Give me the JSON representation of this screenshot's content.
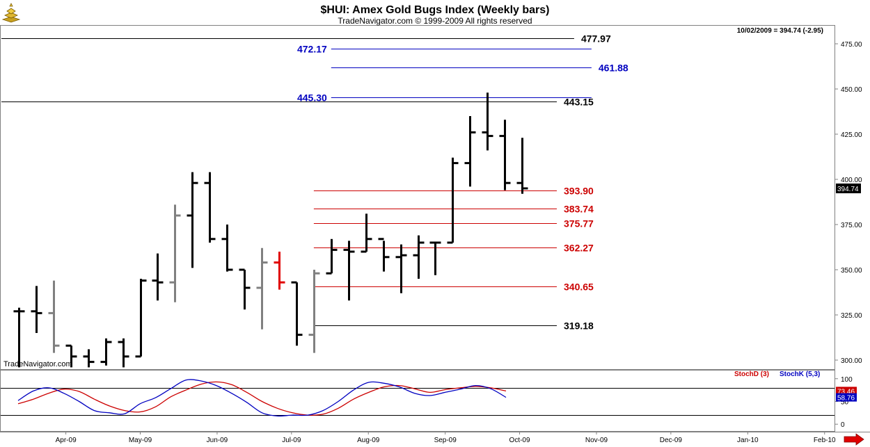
{
  "header": {
    "title": "$HUI:  Amex Gold Bugs Index  (Weekly bars)",
    "subtitle": "TradeNavigator.com © 1999-2009 All rights reserved",
    "last_info": "10/02/2009 = 394.74 (-2.95)",
    "watermark": "TradeNavigator.com"
  },
  "chart_data": [
    {
      "type": "ohlc",
      "ylim": [
        295,
        485
      ],
      "yticks": [
        300,
        325,
        350,
        375,
        400,
        425,
        450,
        475
      ],
      "ytick_labels": [
        "300.00",
        "325.00",
        "350.00",
        "375.00",
        "400.00",
        "425.00",
        "450.00",
        "475.00"
      ],
      "last_price_label": "394.74",
      "colors": {
        "up": "#000000",
        "down": "#808080",
        "highlight": "#e00000"
      },
      "bars": [
        {
          "date": "2009-03-13",
          "open": 327,
          "high": 329,
          "low": 296,
          "close": 327,
          "color": "black"
        },
        {
          "date": "2009-03-20",
          "open": 327,
          "high": 341,
          "low": 315,
          "close": 326,
          "color": "black"
        },
        {
          "date": "2009-03-27",
          "open": 326,
          "high": 344,
          "low": 304,
          "close": 308,
          "color": "gray"
        },
        {
          "date": "2009-04-03",
          "open": 308,
          "high": 308,
          "low": 296,
          "close": 302,
          "color": "black"
        },
        {
          "date": "2009-04-10",
          "open": 302,
          "high": 306,
          "low": 296,
          "close": 299,
          "color": "black"
        },
        {
          "date": "2009-04-17",
          "open": 299,
          "high": 312,
          "low": 297,
          "close": 310,
          "color": "black"
        },
        {
          "date": "2009-04-24",
          "open": 310,
          "high": 312,
          "low": 296,
          "close": 302,
          "color": "black"
        },
        {
          "date": "2009-05-01",
          "open": 302,
          "high": 345,
          "low": 302,
          "close": 344,
          "color": "black"
        },
        {
          "date": "2009-05-08",
          "open": 344,
          "high": 359,
          "low": 333,
          "close": 343,
          "color": "black"
        },
        {
          "date": "2009-05-15",
          "open": 343,
          "high": 386,
          "low": 332,
          "close": 380,
          "color": "gray"
        },
        {
          "date": "2009-05-22",
          "open": 380,
          "high": 404,
          "low": 351,
          "close": 398,
          "color": "black"
        },
        {
          "date": "2009-05-29",
          "open": 398,
          "high": 404,
          "low": 365,
          "close": 367,
          "color": "black"
        },
        {
          "date": "2009-06-05",
          "open": 367,
          "high": 375,
          "low": 349,
          "close": 350,
          "color": "black"
        },
        {
          "date": "2009-06-12",
          "open": 350,
          "high": 350,
          "low": 328,
          "close": 340,
          "color": "black"
        },
        {
          "date": "2009-06-19",
          "open": 340,
          "high": 362,
          "low": 317,
          "close": 354,
          "color": "gray"
        },
        {
          "date": "2009-06-26",
          "open": 354,
          "high": 360,
          "low": 339,
          "close": 343,
          "color": "red"
        },
        {
          "date": "2009-07-03",
          "open": 343,
          "high": 343,
          "low": 308,
          "close": 314,
          "color": "black"
        },
        {
          "date": "2009-07-10",
          "open": 314,
          "high": 350,
          "low": 304,
          "close": 348,
          "color": "gray"
        },
        {
          "date": "2009-07-17",
          "open": 348,
          "high": 367,
          "low": 348,
          "close": 361,
          "color": "black"
        },
        {
          "date": "2009-07-24",
          "open": 361,
          "high": 366,
          "low": 333,
          "close": 360,
          "color": "black"
        },
        {
          "date": "2009-07-31",
          "open": 360,
          "high": 381,
          "low": 360,
          "close": 367,
          "color": "black"
        },
        {
          "date": "2009-08-07",
          "open": 367,
          "high": 366,
          "low": 349,
          "close": 357,
          "color": "black"
        },
        {
          "date": "2009-08-14",
          "open": 357,
          "high": 364,
          "low": 337,
          "close": 358,
          "color": "black"
        },
        {
          "date": "2009-08-21",
          "open": 358,
          "high": 369,
          "low": 345,
          "close": 365,
          "color": "black"
        },
        {
          "date": "2009-08-28",
          "open": 365,
          "high": 365,
          "low": 347,
          "close": 365,
          "color": "black"
        },
        {
          "date": "2009-09-04",
          "open": 365,
          "high": 412,
          "low": 365,
          "close": 409,
          "color": "black"
        },
        {
          "date": "2009-09-11",
          "open": 409,
          "high": 435,
          "low": 396,
          "close": 426,
          "color": "black"
        },
        {
          "date": "2009-09-18",
          "open": 426,
          "high": 448,
          "low": 416,
          "close": 424,
          "color": "black"
        },
        {
          "date": "2009-09-25",
          "open": 424,
          "high": 433,
          "low": 394,
          "close": 398,
          "color": "black"
        },
        {
          "date": "2009-10-02",
          "open": 398,
          "high": 423,
          "low": 392,
          "close": 395,
          "color": "black"
        }
      ],
      "levels": [
        {
          "value": 477.97,
          "label": "477.97",
          "color": "#000000",
          "x_start": "2009-03-06",
          "x_end": "2009-10-23",
          "label_pos": "right-of-end"
        },
        {
          "value": 472.17,
          "label": "472.17",
          "color": "#0000c0",
          "x_start": "2009-07-17",
          "x_end": "2009-10-30",
          "label_pos": "left-of-start"
        },
        {
          "value": 461.88,
          "label": "461.88",
          "color": "#0000c0",
          "x_start": "2009-07-17",
          "x_end": "2009-10-30",
          "label_pos": "right-of-end"
        },
        {
          "value": 445.3,
          "label": "445.30",
          "color": "#0000c0",
          "x_start": "2009-07-17",
          "x_end": "2009-10-30",
          "label_pos": "left-of-start"
        },
        {
          "value": 443.15,
          "label": "443.15",
          "color": "#000000",
          "x_start": "2009-03-06",
          "x_end": "2009-10-16",
          "label_pos": "right-of-end"
        },
        {
          "value": 393.9,
          "label": "393.90",
          "color": "#cc0000",
          "x_start": "2009-07-10",
          "x_end": "2009-10-16",
          "label_pos": "right-of-end"
        },
        {
          "value": 383.74,
          "label": "383.74",
          "color": "#cc0000",
          "x_start": "2009-07-10",
          "x_end": "2009-10-16",
          "label_pos": "right-of-end"
        },
        {
          "value": 375.77,
          "label": "375.77",
          "color": "#cc0000",
          "x_start": "2009-07-10",
          "x_end": "2009-10-16",
          "label_pos": "right-of-end"
        },
        {
          "value": 362.27,
          "label": "362.27",
          "color": "#cc0000",
          "x_start": "2009-07-10",
          "x_end": "2009-10-16",
          "label_pos": "right-of-end"
        },
        {
          "value": 340.65,
          "label": "340.65",
          "color": "#cc0000",
          "x_start": "2009-07-10",
          "x_end": "2009-10-16",
          "label_pos": "right-of-end"
        },
        {
          "value": 319.18,
          "label": "319.18",
          "color": "#000000",
          "x_start": "2009-07-10",
          "x_end": "2009-10-16",
          "label_pos": "right-of-end"
        }
      ]
    },
    {
      "type": "line",
      "ylim": [
        -15,
        118
      ],
      "yticks": [
        0,
        50,
        100
      ],
      "ytick_labels": [
        "0",
        "50",
        "100"
      ],
      "reference_lines": [
        80,
        20
      ],
      "legend": [
        {
          "name": "StochD (3)",
          "color": "#cc0000"
        },
        {
          "name": "StochK (5,3)",
          "color": "#0000c0"
        }
      ],
      "series": [
        {
          "name": "StochD (3)",
          "color": "#cc0000",
          "last_label": "73.46",
          "values": [
            45,
            55,
            68,
            77,
            72,
            55,
            40,
            30,
            27,
            38,
            60,
            75,
            88,
            93,
            87,
            70,
            50,
            35,
            25,
            20,
            22,
            35,
            55,
            70,
            82,
            85,
            78,
            70,
            76,
            80,
            83,
            80,
            73
          ]
        },
        {
          "name": "StochK (5,3)",
          "color": "#0000c0",
          "last_label": "58.76",
          "values": [
            52,
            73,
            80,
            68,
            50,
            30,
            25,
            23,
            45,
            58,
            78,
            97,
            95,
            85,
            68,
            48,
            25,
            18,
            20,
            20,
            30,
            50,
            75,
            92,
            90,
            82,
            68,
            63,
            70,
            77,
            85,
            78,
            59
          ]
        }
      ]
    }
  ],
  "x_axis": {
    "start": "2009-03-06",
    "end": "2010-02-05",
    "labels": [
      {
        "date": "2009-04-01",
        "text": "Apr-09"
      },
      {
        "date": "2009-05-01",
        "text": "May-09"
      },
      {
        "date": "2009-06-01",
        "text": "Jun-09"
      },
      {
        "date": "2009-07-01",
        "text": "Jul-09"
      },
      {
        "date": "2009-08-01",
        "text": "Aug-09"
      },
      {
        "date": "2009-09-01",
        "text": "Sep-09"
      },
      {
        "date": "2009-10-01",
        "text": "Oct-09"
      },
      {
        "date": "2009-11-01",
        "text": "Nov-09"
      },
      {
        "date": "2009-12-01",
        "text": "Dec-09"
      },
      {
        "date": "2010-01-01",
        "text": "Jan-10"
      },
      {
        "date": "2010-02-01",
        "text": "Feb-10"
      }
    ]
  },
  "icons": {
    "logo": "gold-bars-icon",
    "scroll_right": "arrow-right-icon"
  }
}
